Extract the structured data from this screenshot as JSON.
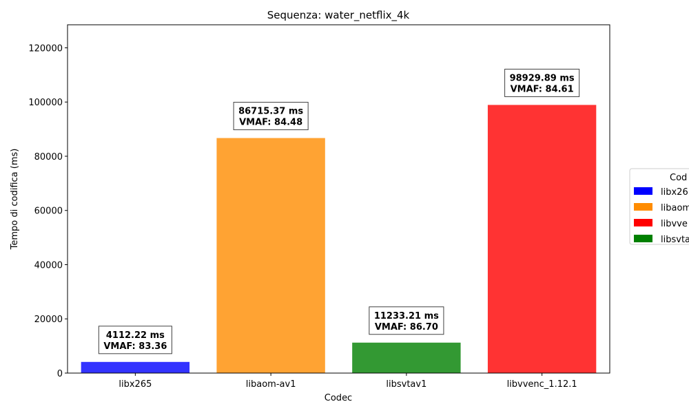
{
  "chart_data": {
    "type": "bar",
    "title": "Sequenza: water_netflix_4k",
    "xlabel": "Codec",
    "ylabel": "Tempo di codifica (ms)",
    "categories": [
      "libx265",
      "libaom-av1",
      "libsvtav1",
      "libvvenc_1.12.1"
    ],
    "values": [
      4112.22,
      86715.37,
      11233.21,
      98929.89
    ],
    "vmaf": [
      83.36,
      84.48,
      86.7,
      84.61
    ],
    "bar_labels": [
      [
        "4112.22 ms",
        "VMAF: 83.36"
      ],
      [
        "86715.37 ms",
        "VMAF: 84.48"
      ],
      [
        "11233.21 ms",
        "VMAF: 86.70"
      ],
      [
        "98929.89 ms",
        "VMAF: 84.61"
      ]
    ],
    "bar_colors": [
      "#3333ff",
      "#ffa333",
      "#339933",
      "#ff3333"
    ],
    "ylim": [
      0,
      128500
    ],
    "yticks": [
      0,
      20000,
      40000,
      60000,
      80000,
      100000,
      120000
    ],
    "ytick_labels": [
      "0",
      "20000",
      "40000",
      "60000",
      "80000",
      "100000",
      "120000"
    ],
    "grid": false,
    "legend": {
      "title": "Cod",
      "placement": "right",
      "entries": [
        {
          "label": "libx26",
          "color": "#0000ff"
        },
        {
          "label": "libaom",
          "color": "#ff8c00"
        },
        {
          "label": "libvve",
          "color": "#ff0000"
        },
        {
          "label": "libsvta",
          "color": "#008000"
        }
      ]
    }
  }
}
